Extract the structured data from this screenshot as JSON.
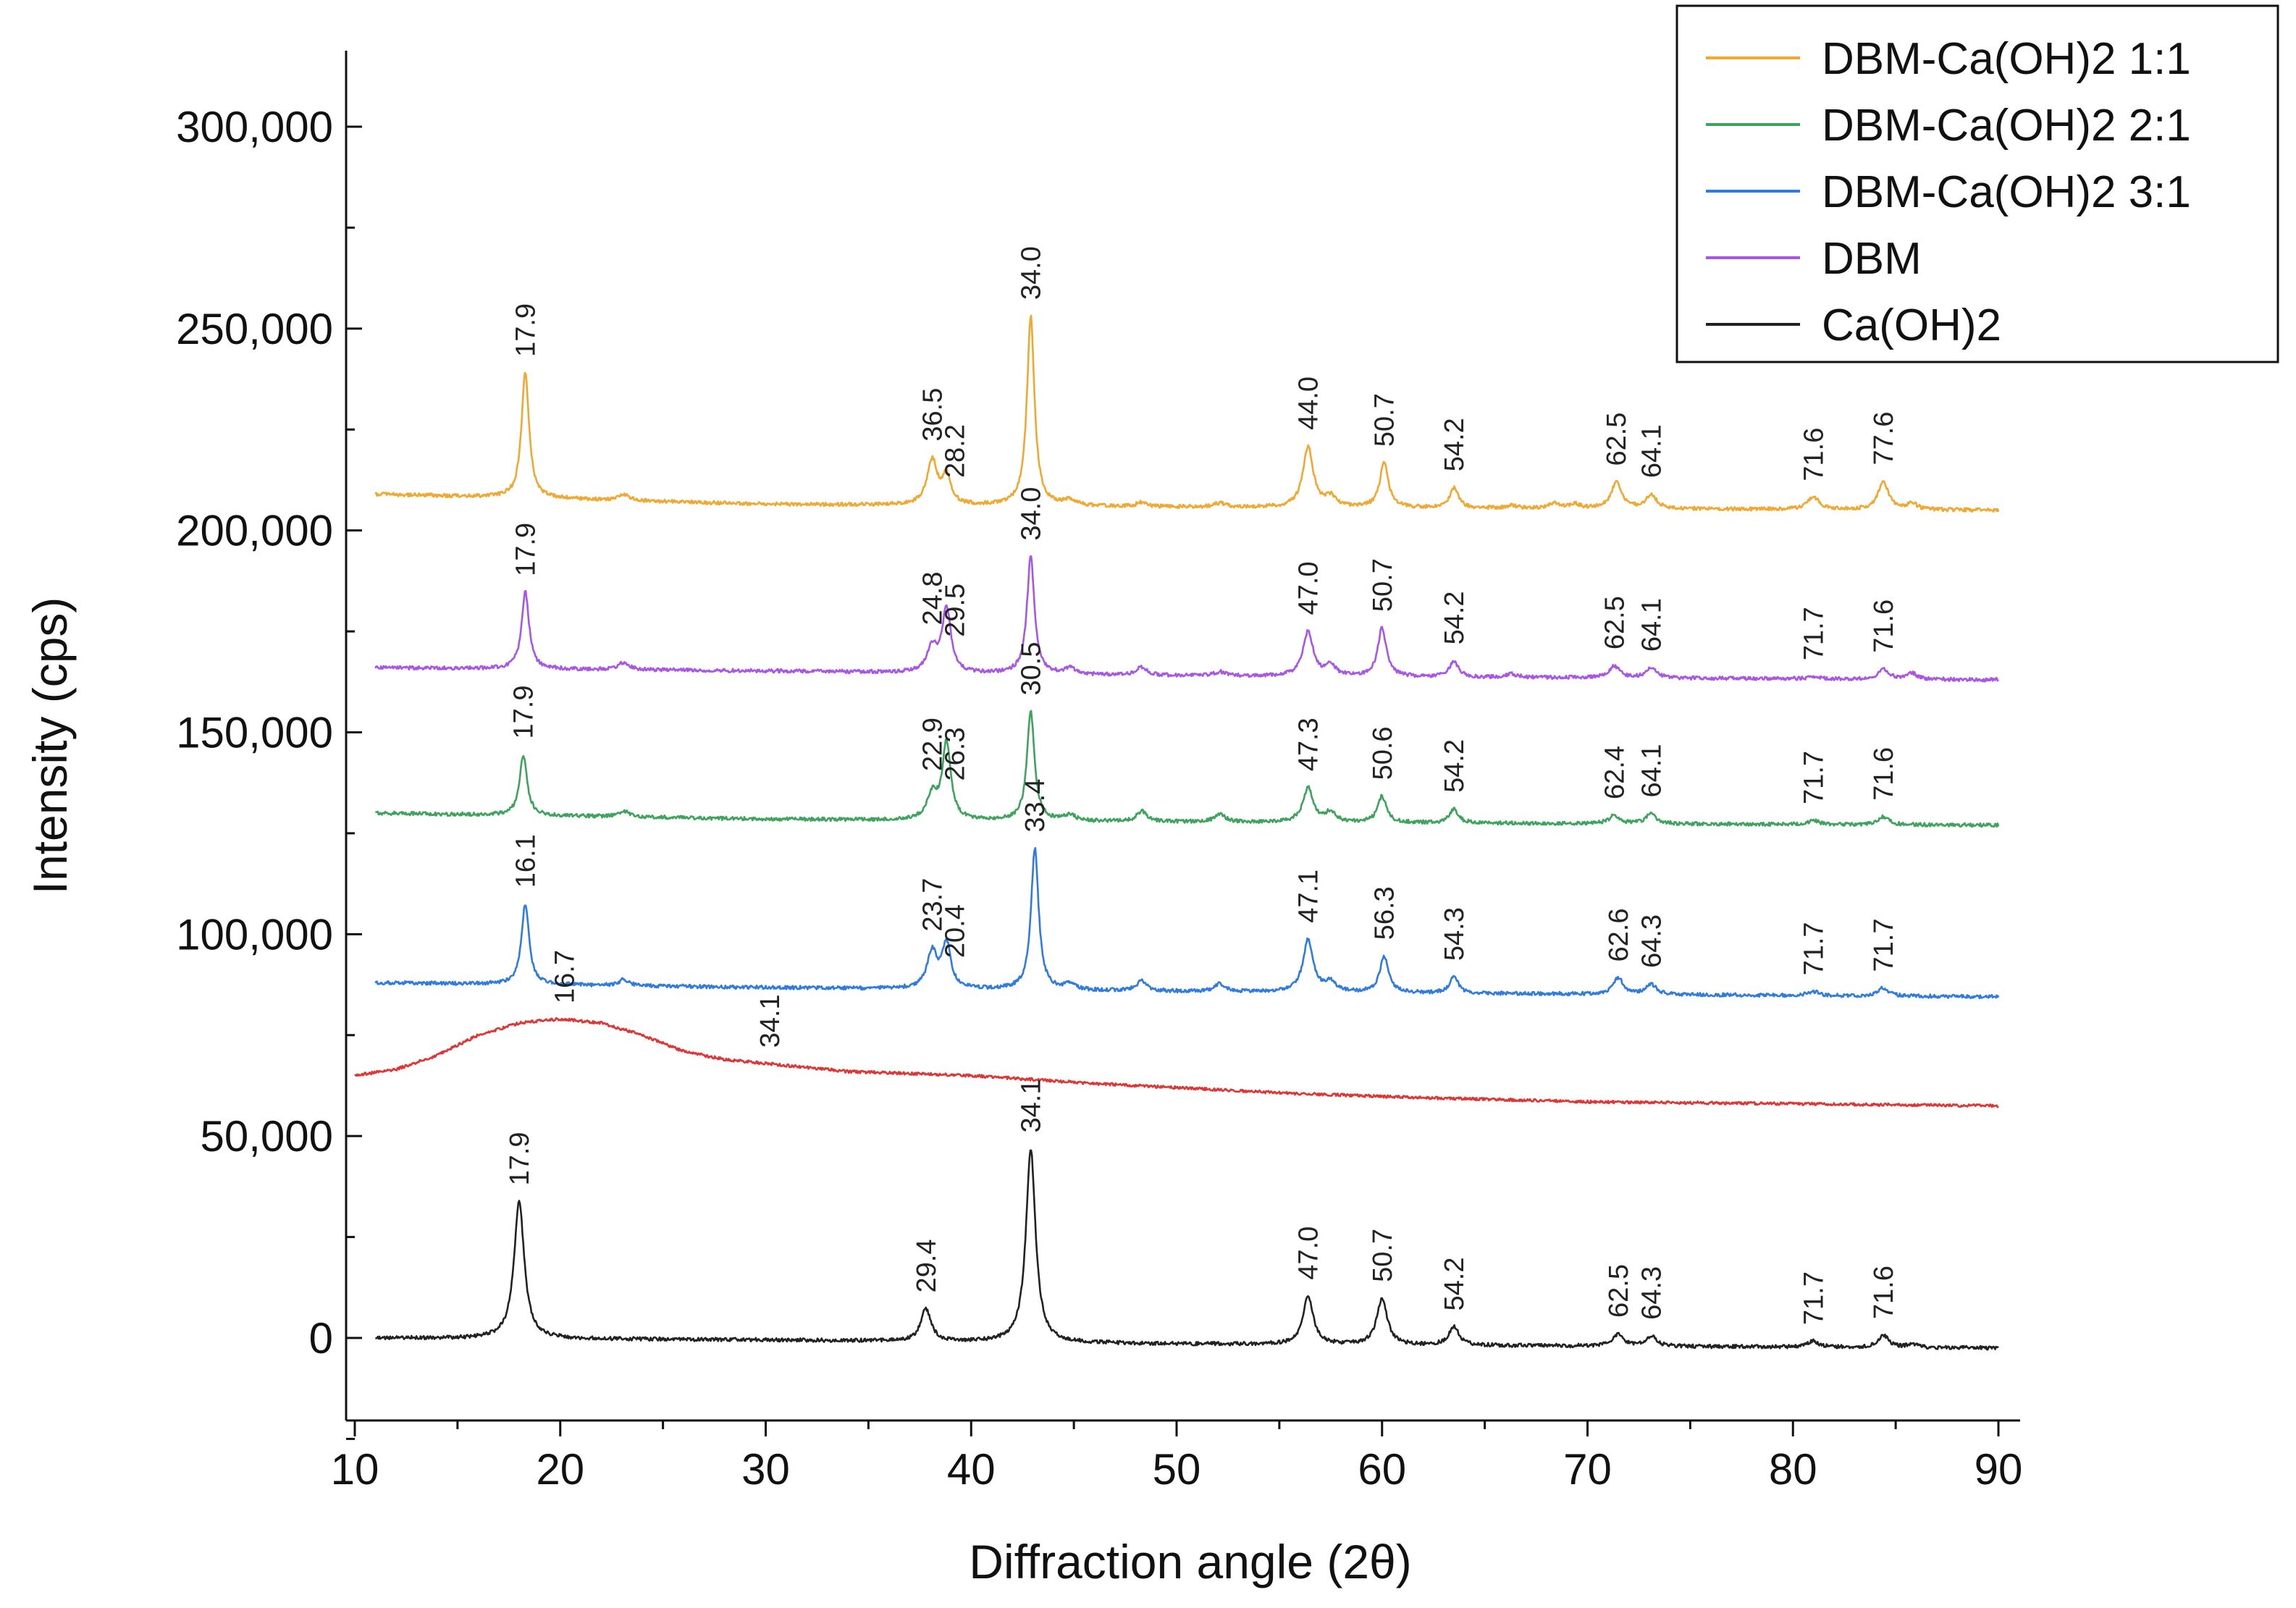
{
  "chart_data": {
    "type": "line",
    "xlabel": "Diffraction angle (2θ)",
    "ylabel": "Intensity (cps)",
    "xlim": [
      10,
      90
    ],
    "ylim": [
      -20000,
      310000
    ],
    "x_ticks": [
      10,
      20,
      30,
      40,
      50,
      60,
      70,
      80,
      90
    ],
    "x_tick_labels": [
      "10",
      "20",
      "30",
      "40",
      "50",
      "60",
      "70",
      "80",
      "90"
    ],
    "y_ticks": [
      0,
      50000,
      100000,
      150000,
      200000,
      250000,
      300000
    ],
    "y_tick_labels": [
      "0",
      "50,000",
      "100,000",
      "150,000",
      "200,000",
      "250,000",
      "300,000"
    ],
    "legend_position": "top-right",
    "legend": [
      {
        "name": "DBM-Ca(OH)2  1:1",
        "color": "#F0A830"
      },
      {
        "name": "DBM-Ca(OH)2  2:1",
        "color": "#3DA35D"
      },
      {
        "name": "DBM-Ca(OH)2  3:1",
        "color": "#2F7BE0"
      },
      {
        "name": "DBM",
        "color": "#A855E8"
      },
      {
        "name": "Ca(OH)2",
        "color": "#222222"
      }
    ],
    "series": [
      {
        "name": "DBM-Ca(OH)2  1:1",
        "color": "#F0A830",
        "baseline": [
          [
            11,
            209000
          ],
          [
            30,
            206500
          ],
          [
            50,
            205800
          ],
          [
            90,
            205000
          ]
        ],
        "peaks": [
          [
            18.3,
            31000,
            0.22
          ],
          [
            23.1,
            1500,
            0.3
          ],
          [
            38.1,
            11000,
            0.3
          ],
          [
            38.8,
            7000,
            0.25
          ],
          [
            42.9,
            47000,
            0.22
          ],
          [
            44.8,
            1500,
            0.3
          ],
          [
            48.3,
            1000,
            0.3
          ],
          [
            52.1,
            1000,
            0.3
          ],
          [
            56.4,
            15000,
            0.3
          ],
          [
            57.5,
            2500,
            0.3
          ],
          [
            60.1,
            11000,
            0.25
          ],
          [
            63.5,
            5000,
            0.25
          ],
          [
            66.3,
            600,
            0.3
          ],
          [
            68.4,
            1200,
            0.3
          ],
          [
            69.4,
            1000,
            0.3
          ],
          [
            71.4,
            6500,
            0.3
          ],
          [
            73.1,
            3500,
            0.3
          ],
          [
            81.0,
            3000,
            0.35
          ],
          [
            84.4,
            7000,
            0.3
          ],
          [
            85.8,
            1500,
            0.3
          ]
        ],
        "peak_labels": [
          {
            "x": 18.3,
            "text": "17.9"
          },
          {
            "x": 38.1,
            "text": "36.5"
          },
          {
            "x": 39.2,
            "text": "28.2"
          },
          {
            "x": 42.9,
            "text": "34.0"
          },
          {
            "x": 56.4,
            "text": "44.0"
          },
          {
            "x": 60.1,
            "text": "50.7"
          },
          {
            "x": 63.5,
            "text": "54.2"
          },
          {
            "x": 71.4,
            "text": "62.5"
          },
          {
            "x": 73.1,
            "text": "64.1"
          },
          {
            "x": 81.0,
            "text": "71.6"
          },
          {
            "x": 84.4,
            "text": "77.6"
          }
        ]
      },
      {
        "name": "DBM",
        "color": "#A855E8",
        "baseline": [
          [
            11,
            166000
          ],
          [
            30,
            165200
          ],
          [
            50,
            164000
          ],
          [
            90,
            163000
          ]
        ],
        "peaks": [
          [
            18.3,
            19000,
            0.22
          ],
          [
            23.1,
            1800,
            0.3
          ],
          [
            38.1,
            6000,
            0.3
          ],
          [
            38.8,
            16000,
            0.25
          ],
          [
            42.9,
            29000,
            0.22
          ],
          [
            44.8,
            1500,
            0.3
          ],
          [
            48.3,
            2000,
            0.3
          ],
          [
            52.1,
            1000,
            0.3
          ],
          [
            56.4,
            11000,
            0.3
          ],
          [
            57.5,
            2500,
            0.3
          ],
          [
            60.0,
            12000,
            0.25
          ],
          [
            63.5,
            4000,
            0.25
          ],
          [
            66.3,
            800,
            0.3
          ],
          [
            71.3,
            3000,
            0.3
          ],
          [
            73.1,
            2500,
            0.3
          ],
          [
            81.0,
            600,
            0.3
          ],
          [
            84.4,
            2500,
            0.3
          ],
          [
            85.8,
            1500,
            0.3
          ]
        ],
        "peak_labels": [
          {
            "x": 18.3,
            "text": "17.9"
          },
          {
            "x": 38.1,
            "text": "24.8"
          },
          {
            "x": 39.2,
            "text": "29.5"
          },
          {
            "x": 42.9,
            "text": "34.0"
          },
          {
            "x": 56.4,
            "text": "47.0"
          },
          {
            "x": 60.0,
            "text": "50.7"
          },
          {
            "x": 63.5,
            "text": "54.2"
          },
          {
            "x": 71.3,
            "text": "62.5"
          },
          {
            "x": 73.1,
            "text": "64.1"
          },
          {
            "x": 81.0,
            "text": "71.7"
          },
          {
            "x": 84.4,
            "text": "71.6"
          }
        ]
      },
      {
        "name": "DBM-Ca(OH)2  2:1",
        "color": "#3DA35D",
        "baseline": [
          [
            11,
            130000
          ],
          [
            30,
            128500
          ],
          [
            50,
            127800
          ],
          [
            90,
            127000
          ]
        ],
        "peaks": [
          [
            18.2,
            15000,
            0.22
          ],
          [
            23.1,
            1500,
            0.3
          ],
          [
            38.1,
            6000,
            0.3
          ],
          [
            38.8,
            19000,
            0.25
          ],
          [
            42.9,
            27000,
            0.22
          ],
          [
            44.8,
            1500,
            0.3
          ],
          [
            48.3,
            2500,
            0.3
          ],
          [
            52.1,
            2000,
            0.3
          ],
          [
            56.4,
            8500,
            0.3
          ],
          [
            57.5,
            2500,
            0.3
          ],
          [
            60.0,
            6500,
            0.25
          ],
          [
            63.5,
            3500,
            0.25
          ],
          [
            71.3,
            2000,
            0.3
          ],
          [
            73.1,
            2500,
            0.3
          ],
          [
            81.0,
            1000,
            0.3
          ],
          [
            84.4,
            2000,
            0.3
          ]
        ],
        "peak_labels": [
          {
            "x": 18.2,
            "text": "17.9"
          },
          {
            "x": 38.1,
            "text": "22.9"
          },
          {
            "x": 39.2,
            "text": "26.3"
          },
          {
            "x": 42.9,
            "text": "30.5"
          },
          {
            "x": 56.4,
            "text": "47.3"
          },
          {
            "x": 60.0,
            "text": "50.6"
          },
          {
            "x": 63.5,
            "text": "54.2"
          },
          {
            "x": 71.3,
            "text": "62.4"
          },
          {
            "x": 73.1,
            "text": "64.1"
          },
          {
            "x": 81.0,
            "text": "71.7"
          },
          {
            "x": 84.4,
            "text": "71.6"
          }
        ]
      },
      {
        "name": "DBM-Ca(OH)2  3:1",
        "color": "#2F7BE0",
        "baseline": [
          [
            11,
            88000
          ],
          [
            30,
            86800
          ],
          [
            50,
            85800
          ],
          [
            90,
            84500
          ]
        ],
        "peaks": [
          [
            18.3,
            20000,
            0.22
          ],
          [
            23.1,
            1500,
            0.3
          ],
          [
            38.1,
            9000,
            0.3
          ],
          [
            38.8,
            11000,
            0.25
          ],
          [
            43.1,
            35000,
            0.22
          ],
          [
            44.8,
            1500,
            0.3
          ],
          [
            48.3,
            2500,
            0.3
          ],
          [
            52.1,
            2000,
            0.3
          ],
          [
            56.4,
            13000,
            0.3
          ],
          [
            57.5,
            2500,
            0.3
          ],
          [
            60.1,
            9000,
            0.25
          ],
          [
            63.5,
            4000,
            0.25
          ],
          [
            71.5,
            4000,
            0.3
          ],
          [
            73.1,
            2500,
            0.3
          ],
          [
            81.0,
            1000,
            0.3
          ],
          [
            84.4,
            2000,
            0.3
          ]
        ],
        "peak_labels": [
          {
            "x": 18.3,
            "text": "16.1"
          },
          {
            "x": 38.1,
            "text": "23.7"
          },
          {
            "x": 39.2,
            "text": "20.4"
          },
          {
            "x": 43.1,
            "text": "33.4"
          },
          {
            "x": 56.4,
            "text": "47.1"
          },
          {
            "x": 60.1,
            "text": "56.3"
          },
          {
            "x": 63.5,
            "text": "54.3"
          },
          {
            "x": 71.5,
            "text": "62.6"
          },
          {
            "x": 73.1,
            "text": "64.3"
          },
          {
            "x": 81.0,
            "text": "71.7"
          },
          {
            "x": 84.4,
            "text": "71.7"
          }
        ]
      },
      {
        "name": "",
        "color": "#E03535",
        "baseline": [
          [
            10,
            65000
          ],
          [
            12,
            66500
          ],
          [
            14,
            70000
          ],
          [
            16,
            75000
          ],
          [
            18,
            78000
          ],
          [
            20,
            79000
          ],
          [
            22,
            78000
          ],
          [
            24,
            75000
          ],
          [
            26,
            71000
          ],
          [
            28,
            69000
          ],
          [
            30,
            68000
          ],
          [
            34,
            66000
          ],
          [
            40,
            65000
          ],
          [
            46,
            63000
          ],
          [
            50,
            62000
          ],
          [
            56,
            60500
          ],
          [
            62,
            59500
          ],
          [
            70,
            58500
          ],
          [
            80,
            58000
          ],
          [
            90,
            57500
          ]
        ],
        "peaks": [],
        "peak_labels": [
          {
            "x": 20.2,
            "text": "16.7"
          },
          {
            "x": 30.2,
            "text": "34.1"
          }
        ]
      },
      {
        "name": "Ca(OH)2",
        "color": "#222222",
        "baseline": [
          [
            11,
            0
          ],
          [
            30,
            -500
          ],
          [
            50,
            -1500
          ],
          [
            90,
            -2500
          ]
        ],
        "peaks": [
          [
            18.0,
            34000,
            0.3
          ],
          [
            37.8,
            8000,
            0.3
          ],
          [
            42.9,
            48000,
            0.28
          ],
          [
            56.4,
            12000,
            0.3
          ],
          [
            60.0,
            11500,
            0.3
          ],
          [
            63.5,
            4500,
            0.3
          ],
          [
            71.5,
            3000,
            0.3
          ],
          [
            73.1,
            2500,
            0.3
          ],
          [
            81.0,
            1500,
            0.3
          ],
          [
            84.4,
            3000,
            0.3
          ],
          [
            85.8,
            800,
            0.3
          ]
        ],
        "peak_labels": [
          {
            "x": 18.0,
            "text": "17.9"
          },
          {
            "x": 37.8,
            "text": "29.4"
          },
          {
            "x": 42.9,
            "text": "34.1"
          },
          {
            "x": 56.4,
            "text": "47.0"
          },
          {
            "x": 60.0,
            "text": "50.7"
          },
          {
            "x": 63.5,
            "text": "54.2"
          },
          {
            "x": 71.5,
            "text": "62.5"
          },
          {
            "x": 73.1,
            "text": "64.3"
          },
          {
            "x": 81.0,
            "text": "71.7"
          },
          {
            "x": 84.4,
            "text": "71.6"
          }
        ]
      }
    ]
  }
}
